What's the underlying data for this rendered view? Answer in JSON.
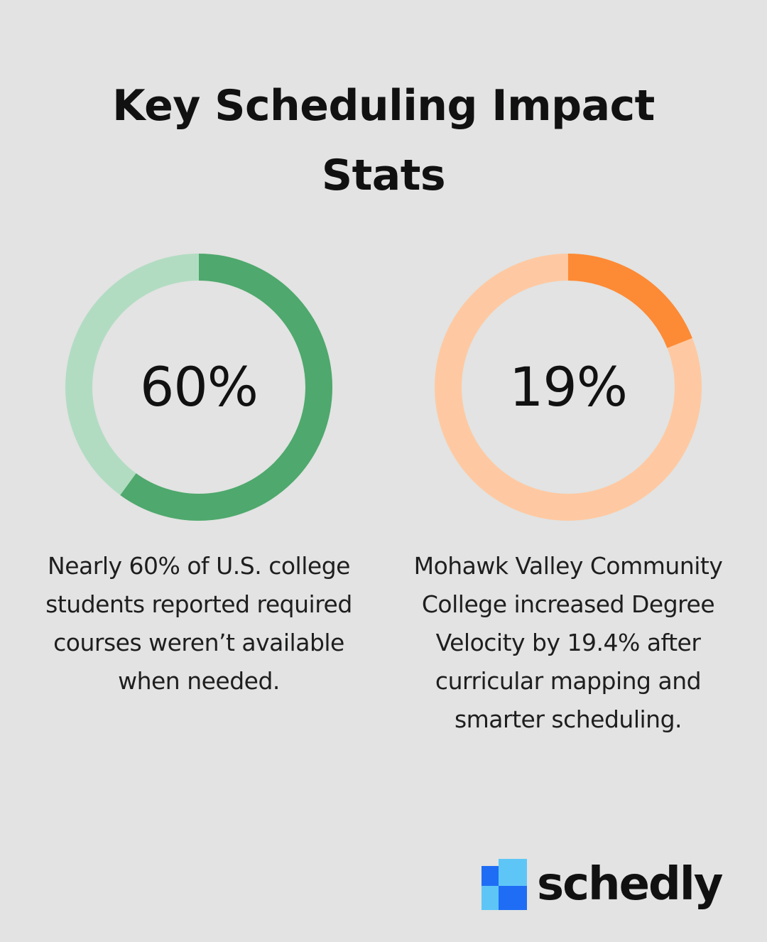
{
  "title": "Key Scheduling Impact Stats",
  "chart_data": [
    {
      "type": "pie",
      "value": 60,
      "display": "60%",
      "description": "Nearly 60% of U.S. college students reported required courses weren’t available when needed.",
      "colors": {
        "fill": "#4fa86d",
        "track": "#b2dcc2"
      }
    },
    {
      "type": "pie",
      "value": 19,
      "display": "19%",
      "description": "Mohawk Valley Community College increased Degree Velocity by 19.4% after curricular mapping and smarter scheduling.",
      "colors": {
        "fill": "#fd8a35",
        "track": "#fec9a2"
      }
    }
  ],
  "brand": {
    "name": "schedly",
    "colors": [
      "#1f6df5",
      "#5ec6f7"
    ],
    "icon": "schedly-logo-icon"
  }
}
